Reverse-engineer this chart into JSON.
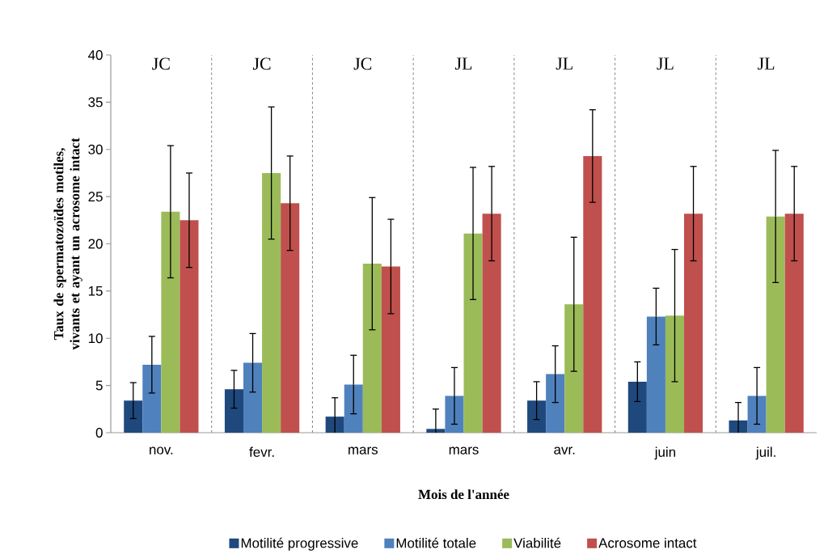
{
  "chart_data": {
    "type": "bar",
    "xlabel": "Mois de l'année",
    "ylabel": "Taux de spermatozoïdes motiles, vivants et ayant un acrosome intact",
    "categories": [
      "nov.",
      "fevr.",
      "mars",
      "mars",
      "avr.",
      "juin",
      "juil."
    ],
    "series": [
      {
        "name": "Motilité progressive",
        "color": "#1f497d",
        "values": [
          3.4,
          4.6,
          1.7,
          0.4,
          3.4,
          5.4,
          1.3
        ],
        "errors": [
          1.9,
          2.0,
          2.0,
          2.1,
          2.0,
          2.1,
          1.9
        ]
      },
      {
        "name": "Motilité totale",
        "color": "#4f81bd",
        "values": [
          7.2,
          7.4,
          5.1,
          3.9,
          6.2,
          12.3,
          3.9
        ],
        "errors": [
          3.0,
          3.1,
          3.1,
          3.0,
          3.0,
          3.0,
          3.0
        ]
      },
      {
        "name": "Viabilité",
        "color": "#9bbb59",
        "values": [
          23.4,
          27.5,
          17.9,
          21.1,
          13.6,
          12.4,
          22.9
        ],
        "errors": [
          7.0,
          7.0,
          7.0,
          7.0,
          7.1,
          7.0,
          7.0
        ]
      },
      {
        "name": "Acrosome intact",
        "color": "#c0504d",
        "values": [
          22.5,
          24.3,
          17.6,
          23.2,
          29.3,
          23.2,
          23.2
        ],
        "errors": [
          5.0,
          5.0,
          5.0,
          5.0,
          4.9,
          5.0,
          5.0
        ]
      }
    ],
    "annotations": [
      "JC",
      "JC",
      "JC",
      "JL",
      "JL",
      "JL",
      "JL"
    ],
    "ylim": [
      0,
      40
    ],
    "yticks": [
      0,
      5,
      10,
      15,
      20,
      25,
      30,
      35,
      40
    ],
    "grid": "x",
    "legend": "bottom"
  }
}
